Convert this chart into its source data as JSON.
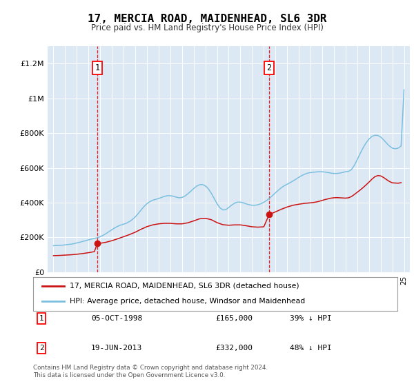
{
  "title": "17, MERCIA ROAD, MAIDENHEAD, SL6 3DR",
  "subtitle": "Price paid vs. HM Land Registry's House Price Index (HPI)",
  "plot_bg_color": "#dce9f5",
  "legend_label_red": "17, MERCIA ROAD, MAIDENHEAD, SL6 3DR (detached house)",
  "legend_label_blue": "HPI: Average price, detached house, Windsor and Maidenhead",
  "footnote": "Contains HM Land Registry data © Crown copyright and database right 2024.\nThis data is licensed under the Open Government Licence v3.0.",
  "annotations": [
    {
      "num": 1,
      "date": "05-OCT-1998",
      "price": 165000,
      "label": "39% ↓ HPI",
      "x_year": 1998.76
    },
    {
      "num": 2,
      "date": "19-JUN-2013",
      "price": 332000,
      "label": "48% ↓ HPI",
      "x_year": 2013.46
    }
  ],
  "hpi_line_color": "#7bbfdf",
  "price_line_color": "#cc1111",
  "ylim": [
    0,
    1300000
  ],
  "yticks": [
    0,
    200000,
    400000,
    600000,
    800000,
    1000000,
    1200000
  ],
  "ytick_labels": [
    "£0",
    "£200K",
    "£400K",
    "£600K",
    "£800K",
    "£1M",
    "£1.2M"
  ],
  "xmin": 1994.5,
  "xmax": 2025.5,
  "hpi_data": [
    [
      1995.0,
      152000
    ],
    [
      1995.25,
      153000
    ],
    [
      1995.5,
      154000
    ],
    [
      1995.75,
      155000
    ],
    [
      1996.0,
      157000
    ],
    [
      1996.25,
      159000
    ],
    [
      1996.5,
      161000
    ],
    [
      1996.75,
      164000
    ],
    [
      1997.0,
      168000
    ],
    [
      1997.25,
      172000
    ],
    [
      1997.5,
      177000
    ],
    [
      1997.75,
      181000
    ],
    [
      1998.0,
      186000
    ],
    [
      1998.25,
      190000
    ],
    [
      1998.5,
      194000
    ],
    [
      1998.75,
      198000
    ],
    [
      1999.0,
      204000
    ],
    [
      1999.25,
      212000
    ],
    [
      1999.5,
      222000
    ],
    [
      1999.75,
      233000
    ],
    [
      2000.0,
      244000
    ],
    [
      2000.25,
      255000
    ],
    [
      2000.5,
      264000
    ],
    [
      2000.75,
      271000
    ],
    [
      2001.0,
      276000
    ],
    [
      2001.25,
      282000
    ],
    [
      2001.5,
      291000
    ],
    [
      2001.75,
      303000
    ],
    [
      2002.0,
      318000
    ],
    [
      2002.25,
      337000
    ],
    [
      2002.5,
      358000
    ],
    [
      2002.75,
      378000
    ],
    [
      2003.0,
      394000
    ],
    [
      2003.25,
      406000
    ],
    [
      2003.5,
      414000
    ],
    [
      2003.75,
      419000
    ],
    [
      2004.0,
      424000
    ],
    [
      2004.25,
      430000
    ],
    [
      2004.5,
      436000
    ],
    [
      2004.75,
      440000
    ],
    [
      2005.0,
      440000
    ],
    [
      2005.25,
      437000
    ],
    [
      2005.5,
      432000
    ],
    [
      2005.75,
      428000
    ],
    [
      2006.0,
      430000
    ],
    [
      2006.25,
      438000
    ],
    [
      2006.5,
      451000
    ],
    [
      2006.75,
      466000
    ],
    [
      2007.0,
      481000
    ],
    [
      2007.25,
      495000
    ],
    [
      2007.5,
      503000
    ],
    [
      2007.75,
      504000
    ],
    [
      2008.0,
      497000
    ],
    [
      2008.25,
      480000
    ],
    [
      2008.5,
      455000
    ],
    [
      2008.75,
      425000
    ],
    [
      2009.0,
      394000
    ],
    [
      2009.25,
      370000
    ],
    [
      2009.5,
      358000
    ],
    [
      2009.75,
      360000
    ],
    [
      2010.0,
      372000
    ],
    [
      2010.25,
      386000
    ],
    [
      2010.5,
      397000
    ],
    [
      2010.75,
      403000
    ],
    [
      2011.0,
      403000
    ],
    [
      2011.25,
      399000
    ],
    [
      2011.5,
      393000
    ],
    [
      2011.75,
      388000
    ],
    [
      2012.0,
      385000
    ],
    [
      2012.25,
      385000
    ],
    [
      2012.5,
      388000
    ],
    [
      2012.75,
      394000
    ],
    [
      2013.0,
      402000
    ],
    [
      2013.25,
      413000
    ],
    [
      2013.5,
      426000
    ],
    [
      2013.75,
      441000
    ],
    [
      2014.0,
      457000
    ],
    [
      2014.25,
      472000
    ],
    [
      2014.5,
      486000
    ],
    [
      2014.75,
      497000
    ],
    [
      2015.0,
      506000
    ],
    [
      2015.25,
      515000
    ],
    [
      2015.5,
      525000
    ],
    [
      2015.75,
      535000
    ],
    [
      2016.0,
      546000
    ],
    [
      2016.25,
      556000
    ],
    [
      2016.5,
      564000
    ],
    [
      2016.75,
      570000
    ],
    [
      2017.0,
      573000
    ],
    [
      2017.25,
      575000
    ],
    [
      2017.5,
      577000
    ],
    [
      2017.75,
      578000
    ],
    [
      2018.0,
      578000
    ],
    [
      2018.25,
      576000
    ],
    [
      2018.5,
      573000
    ],
    [
      2018.75,
      570000
    ],
    [
      2019.0,
      568000
    ],
    [
      2019.25,
      568000
    ],
    [
      2019.5,
      570000
    ],
    [
      2019.75,
      574000
    ],
    [
      2020.0,
      578000
    ],
    [
      2020.25,
      580000
    ],
    [
      2020.5,
      590000
    ],
    [
      2020.75,
      615000
    ],
    [
      2021.0,
      648000
    ],
    [
      2021.25,
      683000
    ],
    [
      2021.5,
      716000
    ],
    [
      2021.75,
      744000
    ],
    [
      2022.0,
      766000
    ],
    [
      2022.25,
      781000
    ],
    [
      2022.5,
      788000
    ],
    [
      2022.75,
      787000
    ],
    [
      2023.0,
      778000
    ],
    [
      2023.25,
      762000
    ],
    [
      2023.5,
      743000
    ],
    [
      2023.75,
      726000
    ],
    [
      2024.0,
      714000
    ],
    [
      2024.25,
      710000
    ],
    [
      2024.5,
      714000
    ],
    [
      2024.75,
      726000
    ],
    [
      2025.0,
      1050000
    ]
  ],
  "price_data": [
    [
      1995.0,
      95000
    ],
    [
      1995.5,
      96000
    ],
    [
      1996.0,
      98000
    ],
    [
      1996.5,
      100000
    ],
    [
      1997.0,
      103000
    ],
    [
      1997.5,
      107000
    ],
    [
      1998.0,
      112000
    ],
    [
      1998.5,
      118000
    ],
    [
      1998.76,
      165000
    ],
    [
      1999.0,
      166000
    ],
    [
      1999.5,
      172000
    ],
    [
      2000.0,
      181000
    ],
    [
      2000.5,
      192000
    ],
    [
      2001.0,
      204000
    ],
    [
      2001.5,
      216000
    ],
    [
      2002.0,
      230000
    ],
    [
      2002.5,
      247000
    ],
    [
      2003.0,
      262000
    ],
    [
      2003.5,
      272000
    ],
    [
      2004.0,
      278000
    ],
    [
      2004.5,
      281000
    ],
    [
      2005.0,
      281000
    ],
    [
      2005.5,
      278000
    ],
    [
      2006.0,
      278000
    ],
    [
      2006.5,
      284000
    ],
    [
      2007.0,
      295000
    ],
    [
      2007.5,
      307000
    ],
    [
      2008.0,
      310000
    ],
    [
      2008.5,
      302000
    ],
    [
      2009.0,
      285000
    ],
    [
      2009.5,
      273000
    ],
    [
      2010.0,
      270000
    ],
    [
      2010.5,
      272000
    ],
    [
      2011.0,
      272000
    ],
    [
      2011.5,
      267000
    ],
    [
      2012.0,
      261000
    ],
    [
      2012.5,
      259000
    ],
    [
      2013.0,
      261000
    ],
    [
      2013.46,
      332000
    ],
    [
      2013.5,
      333000
    ],
    [
      2014.0,
      347000
    ],
    [
      2014.5,
      362000
    ],
    [
      2015.0,
      375000
    ],
    [
      2015.5,
      385000
    ],
    [
      2016.0,
      391000
    ],
    [
      2016.5,
      396000
    ],
    [
      2017.0,
      399000
    ],
    [
      2017.25,
      401000
    ],
    [
      2017.5,
      404000
    ],
    [
      2017.75,
      408000
    ],
    [
      2018.0,
      413000
    ],
    [
      2018.25,
      418000
    ],
    [
      2018.5,
      422000
    ],
    [
      2018.75,
      426000
    ],
    [
      2019.0,
      428000
    ],
    [
      2019.25,
      429000
    ],
    [
      2019.5,
      428000
    ],
    [
      2019.75,
      427000
    ],
    [
      2020.0,
      426000
    ],
    [
      2020.25,
      428000
    ],
    [
      2020.5,
      435000
    ],
    [
      2020.75,
      447000
    ],
    [
      2021.0,
      460000
    ],
    [
      2021.25,
      473000
    ],
    [
      2021.5,
      487000
    ],
    [
      2021.75,
      502000
    ],
    [
      2022.0,
      518000
    ],
    [
      2022.25,
      535000
    ],
    [
      2022.5,
      549000
    ],
    [
      2022.75,
      556000
    ],
    [
      2023.0,
      554000
    ],
    [
      2023.25,
      545000
    ],
    [
      2023.5,
      533000
    ],
    [
      2023.75,
      522000
    ],
    [
      2024.0,
      514000
    ],
    [
      2024.5,
      512000
    ],
    [
      2024.75,
      515000
    ]
  ]
}
